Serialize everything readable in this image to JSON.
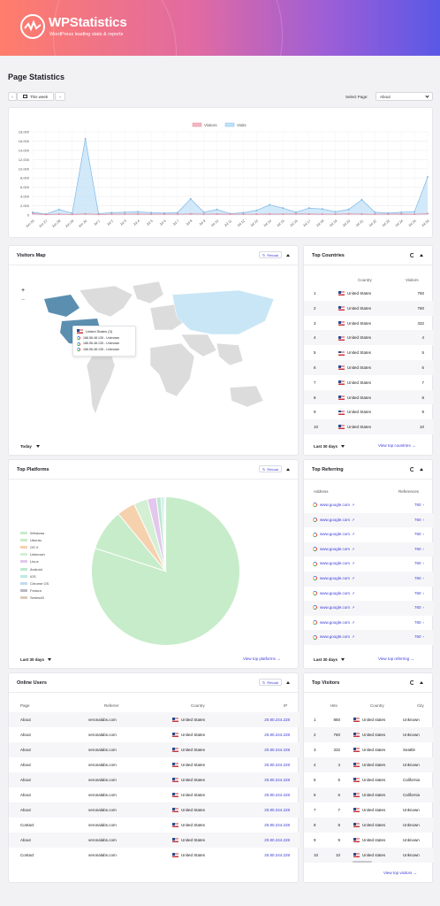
{
  "brand": {
    "title": "WPStatistics",
    "subtitle": "WordPress leading stats & reports"
  },
  "page": {
    "title": "Page Statistics"
  },
  "toolbar": {
    "prev": "‹",
    "range_label": "This week",
    "next": "›",
    "select_page_label": "Select Page:",
    "select_page_value": "About"
  },
  "colors": {
    "accent": "#3b3bd8",
    "visitors": "#f3b7c3",
    "visits": "#bfe0f7"
  },
  "chart_data": {
    "type": "line",
    "legend": [
      "Visitors",
      "Visits"
    ],
    "categories": [
      "Jun 26",
      "Jun 27",
      "Jun 28",
      "Jun 29",
      "Jun 30",
      "Jul 1",
      "Jul 2",
      "Jul 3",
      "Jul 4",
      "Jul 5",
      "Jul 6",
      "Jul 7",
      "Jul 8",
      "Jul 9",
      "Jul 10",
      "Jul 11",
      "Jul 12",
      "Jul 13",
      "Jul 14",
      "Jul 15",
      "Jul 16",
      "Jul 17",
      "Jul 18",
      "Jul 19",
      "Jul 20",
      "Jul 21",
      "Jul 22",
      "Jul 23",
      "Jul 24",
      "Jul 25",
      "Jul 26"
    ],
    "series": [
      {
        "name": "Visitors",
        "values": [
          300,
          120,
          200,
          150,
          250,
          150,
          180,
          200,
          220,
          180,
          200,
          180,
          250,
          200,
          220,
          180,
          200,
          180,
          220,
          200,
          250,
          220,
          180,
          200,
          250,
          200,
          180,
          200,
          220,
          180,
          300
        ]
      },
      {
        "name": "Visits",
        "values": [
          600,
          200,
          1200,
          400,
          16500,
          300,
          500,
          600,
          700,
          500,
          400,
          500,
          3500,
          600,
          1200,
          300,
          500,
          1000,
          2200,
          1500,
          600,
          1500,
          1300,
          700,
          1200,
          3300,
          600,
          400,
          600,
          700,
          8200
        ]
      }
    ],
    "yticks": [
      "18,000",
      "16,000",
      "14,000",
      "12,000",
      "10,000",
      "8,000",
      "6,000",
      "4,000",
      "2,000",
      "0"
    ],
    "ylim": [
      0,
      18000
    ]
  },
  "visitors_map": {
    "title": "Visitors Map",
    "reload": "Reload",
    "zoom_in": "+",
    "zoom_out": "−",
    "tooltip_country": "United States (3)",
    "tooltip_rows": [
      "186.56.48.135 - Unknown",
      "186.56.48.135 - Unknown",
      "186.56.48.135 - Unknown"
    ],
    "range": "Today"
  },
  "top_countries": {
    "title": "Top Countries",
    "col_country": "Country",
    "col_visitors": "Visitors",
    "rows": [
      {
        "n": "1",
        "c": "United States",
        "v": "760"
      },
      {
        "n": "2",
        "c": "United States",
        "v": "760"
      },
      {
        "n": "3",
        "c": "United States",
        "v": "332"
      },
      {
        "n": "4",
        "c": "United States",
        "v": "4"
      },
      {
        "n": "5",
        "c": "United States",
        "v": "5"
      },
      {
        "n": "6",
        "c": "United States",
        "v": "6"
      },
      {
        "n": "7",
        "c": "United States",
        "v": "7"
      },
      {
        "n": "8",
        "c": "United States",
        "v": "8"
      },
      {
        "n": "9",
        "c": "United States",
        "v": "9"
      },
      {
        "n": "10",
        "c": "United States",
        "v": "10"
      }
    ],
    "range": "Last 30 days",
    "view": "View top countries →"
  },
  "top_platforms": {
    "title": "Top Platforms",
    "reload": "Reload",
    "legend": [
      "Windows",
      "Ubuntu",
      "OS X",
      "Unknown",
      "Linux",
      "Android",
      "iOS",
      "Chrome OS",
      "Fedora",
      "Series40"
    ],
    "legend_colors": [
      "#c7ecc9",
      "#c7ecc9",
      "#f6d1ae",
      "#d3efd4",
      "#e3c7ed",
      "#bfe8d0",
      "#bdebe1",
      "#c0dcef",
      "#b9b9c3",
      "#d9c9b9"
    ],
    "values": [
      80,
      9,
      4,
      3,
      2,
      1,
      0.5,
      0.3,
      0.1,
      0.1
    ],
    "range": "Last 30 days",
    "view": "View top platforms →"
  },
  "top_referring": {
    "title": "Top Referring",
    "col_address": "Address",
    "col_refs": "References",
    "rows": [
      {
        "a": "www.google.com",
        "r": "760"
      },
      {
        "a": "www.google.com",
        "r": "760"
      },
      {
        "a": "www.google.com",
        "r": "760"
      },
      {
        "a": "www.google.com",
        "r": "760"
      },
      {
        "a": "www.google.com",
        "r": "760"
      },
      {
        "a": "www.google.com",
        "r": "760"
      },
      {
        "a": "www.google.com",
        "r": "760"
      },
      {
        "a": "www.google.com",
        "r": "760"
      },
      {
        "a": "www.google.com",
        "r": "760"
      },
      {
        "a": "www.google.com",
        "r": "760"
      }
    ],
    "range": "Last 30 days",
    "view": "View top referring →"
  },
  "online_users": {
    "title": "Online Users",
    "reload": "Reload",
    "col_page": "Page",
    "col_referrer": "Referrer",
    "col_country": "Country",
    "col_ip": "IP",
    "rows": [
      {
        "p": "About",
        "r": "veronalabs.com",
        "c": "United States",
        "ip": "20.80.244.228"
      },
      {
        "p": "About",
        "r": "veronalabs.com",
        "c": "United States",
        "ip": "20.80.244.228"
      },
      {
        "p": "About",
        "r": "veronalabs.com",
        "c": "United States",
        "ip": "20.80.244.228"
      },
      {
        "p": "About",
        "r": "veronalabs.com",
        "c": "United States",
        "ip": "20.80.244.228"
      },
      {
        "p": "About",
        "r": "veronalabs.com",
        "c": "United States",
        "ip": "20.80.244.228"
      },
      {
        "p": "About",
        "r": "veronalabs.com",
        "c": "United States",
        "ip": "20.80.244.228"
      },
      {
        "p": "About",
        "r": "veronalabs.com",
        "c": "United States",
        "ip": "20.80.244.228"
      },
      {
        "p": "Contact",
        "r": "veronalabs.com",
        "c": "United States",
        "ip": "20.80.244.228"
      },
      {
        "p": "About",
        "r": "veronalabs.com",
        "c": "United States",
        "ip": "20.80.244.228"
      },
      {
        "p": "Contact",
        "r": "veronalabs.com",
        "c": "United States",
        "ip": "20.80.244.228"
      }
    ]
  },
  "top_visitors": {
    "title": "Top Visitors",
    "col_hits": "Hits",
    "col_country": "Country",
    "col_city": "City",
    "rows": [
      {
        "n": "1",
        "h": "850",
        "c": "United states",
        "city": "Unknown"
      },
      {
        "n": "2",
        "h": "760",
        "c": "United states",
        "city": "Unknown"
      },
      {
        "n": "3",
        "h": "332",
        "c": "United states",
        "city": "Seattle"
      },
      {
        "n": "4",
        "h": "4",
        "c": "United states",
        "city": "Unknown"
      },
      {
        "n": "5",
        "h": "5",
        "c": "United states",
        "city": "California"
      },
      {
        "n": "6",
        "h": "6",
        "c": "United states",
        "city": "California"
      },
      {
        "n": "7",
        "h": "7",
        "c": "United states",
        "city": "Unknown"
      },
      {
        "n": "8",
        "h": "8",
        "c": "United states",
        "city": "Unknown"
      },
      {
        "n": "9",
        "h": "9",
        "c": "United states",
        "city": "Unknown"
      },
      {
        "n": "10",
        "h": "10",
        "c": "United states",
        "city": "Unknown"
      }
    ],
    "view": "View top visitors →"
  }
}
